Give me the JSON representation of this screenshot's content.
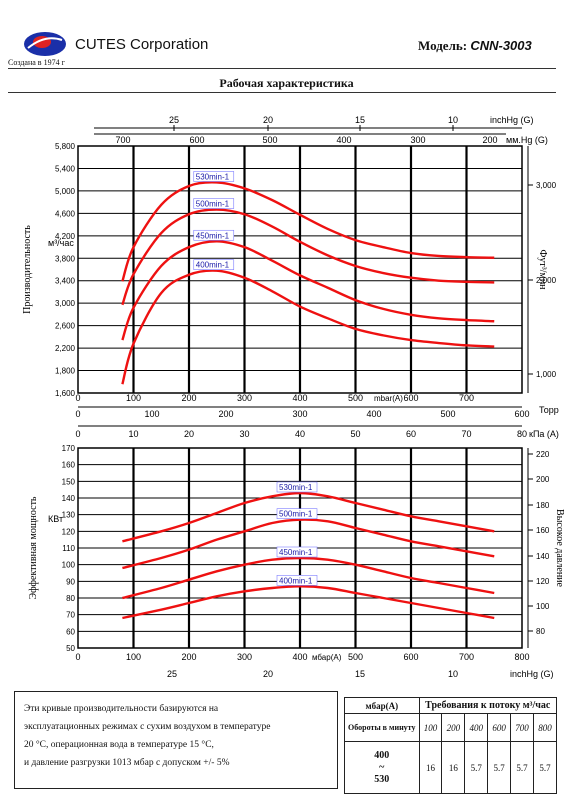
{
  "header": {
    "company": "CUTES Corporation",
    "founded": "Создана в 1974 г",
    "model_prefix": "Модель: ",
    "model_name": "CNN-3003",
    "title": "Рабочая характеристика"
  },
  "chart_data": [
    {
      "type": "line",
      "ylabel": "Производительность",
      "yunit": "м³/час",
      "ylabel_right": "Фут³/мин",
      "ylim": [
        1600,
        5800
      ],
      "yticks": [
        "1,600",
        "1,800",
        "2,200",
        "2,600",
        "3,000",
        "3,400",
        "3,800",
        "4,200",
        "4,600",
        "5,000",
        "5,400",
        "5,800"
      ],
      "yticks_right": [
        "1,000",
        "2,000",
        "3,000"
      ],
      "top_axis1": {
        "label": "inchHg (G)",
        "ticks": [
          "25",
          "20",
          "15",
          "10"
        ]
      },
      "top_axis2": {
        "label": "мм.Hg (G)",
        "ticks": [
          "700",
          "600",
          "500",
          "400",
          "300",
          "200"
        ]
      },
      "bottom_axis1": {
        "label": "mbar(A)",
        "ticks": [
          "0",
          "100",
          "200",
          "300",
          "400",
          "500",
          "600",
          "700"
        ]
      },
      "bottom_axis2": {
        "label": "Торр",
        "ticks": [
          "0",
          "100",
          "200",
          "300",
          "400",
          "500",
          "600"
        ]
      },
      "x": [
        80,
        100,
        150,
        200,
        250,
        300,
        350,
        400,
        450,
        500,
        550,
        600,
        650,
        700,
        750
      ],
      "series": [
        {
          "name": "530min-1",
          "values": [
            3500,
            4080,
            4800,
            5120,
            5180,
            5080,
            4880,
            4630,
            4390,
            4200,
            4080,
            3980,
            3930,
            3910,
            3900
          ]
        },
        {
          "name": "500min-1",
          "values": [
            3100,
            3620,
            4320,
            4640,
            4720,
            4640,
            4430,
            4170,
            3940,
            3760,
            3640,
            3560,
            3510,
            3490,
            3480
          ]
        },
        {
          "name": "450min-1",
          "values": [
            2500,
            3050,
            3760,
            4080,
            4180,
            4080,
            3850,
            3600,
            3390,
            3180,
            3030,
            2930,
            2870,
            2840,
            2820
          ]
        },
        {
          "name": "400min-1",
          "values": [
            1750,
            2440,
            3300,
            3610,
            3680,
            3560,
            3330,
            3070,
            2870,
            2690,
            2580,
            2500,
            2450,
            2410,
            2390
          ]
        }
      ]
    },
    {
      "type": "line",
      "ylabel": "Эффективная мощность",
      "yunit": "КВт",
      "ylabel_right": "Высокое давление",
      "ylim": [
        50,
        170
      ],
      "yticks": [
        "50",
        "60",
        "70",
        "80",
        "90",
        "100",
        "110",
        "120",
        "130",
        "140",
        "150",
        "160",
        "170"
      ],
      "yticks_right": [
        "80",
        "100",
        "120",
        "140",
        "160",
        "180",
        "200",
        "220"
      ],
      "top_axis1": {
        "label": "кПа (A)",
        "ticks": [
          "0",
          "10",
          "20",
          "30",
          "40",
          "50",
          "60",
          "70",
          "80"
        ]
      },
      "bottom_axis1": {
        "label": "мбар(A)",
        "ticks": [
          "0",
          "100",
          "200",
          "300",
          "400",
          "500",
          "600",
          "700",
          "800"
        ]
      },
      "bottom_axis2": {
        "label": "inchHg (G)",
        "ticks": [
          "25",
          "20",
          "15",
          "10"
        ]
      },
      "x": [
        80,
        150,
        200,
        250,
        300,
        350,
        400,
        450,
        500,
        550,
        600,
        650,
        700,
        750
      ],
      "series": [
        {
          "name": "530min-1",
          "values": [
            114,
            120,
            125,
            131,
            137,
            141,
            143,
            141,
            137,
            133,
            129,
            126,
            123,
            120
          ]
        },
        {
          "name": "500min-1",
          "values": [
            98,
            104,
            109,
            115,
            120,
            125,
            127,
            126,
            122,
            118,
            114,
            111,
            108,
            105
          ]
        },
        {
          "name": "450min-1",
          "values": [
            80,
            86,
            91,
            96,
            100,
            103,
            104,
            103,
            100,
            96,
            92,
            89,
            86,
            83
          ]
        },
        {
          "name": "400min-1",
          "values": [
            68,
            73,
            77,
            81,
            84,
            86,
            87,
            86,
            83,
            80,
            77,
            74,
            71,
            68
          ]
        }
      ]
    }
  ],
  "note": {
    "line1": "Эти кривые производительности базируются на",
    "line2": "эксплуатационных режимах с сухим воздухом в температуре",
    "line3": "20 °C, операционная вода в температуре 15 °C,",
    "line4": "и давление разгрузки 1013 мбар с допуском +/- 5%"
  },
  "table": {
    "unit_header": "мбар(A)",
    "title": "Требования к потоку м³/час",
    "rpm_header": "Обороты в минуту",
    "pressures": [
      "100",
      "200",
      "400",
      "600",
      "700",
      "800"
    ],
    "rpm_top": "400",
    "rpm_mid": "~",
    "rpm_bottom": "530",
    "values": [
      "16",
      "16",
      "5.7",
      "5.7",
      "5.7",
      "5.7"
    ]
  }
}
